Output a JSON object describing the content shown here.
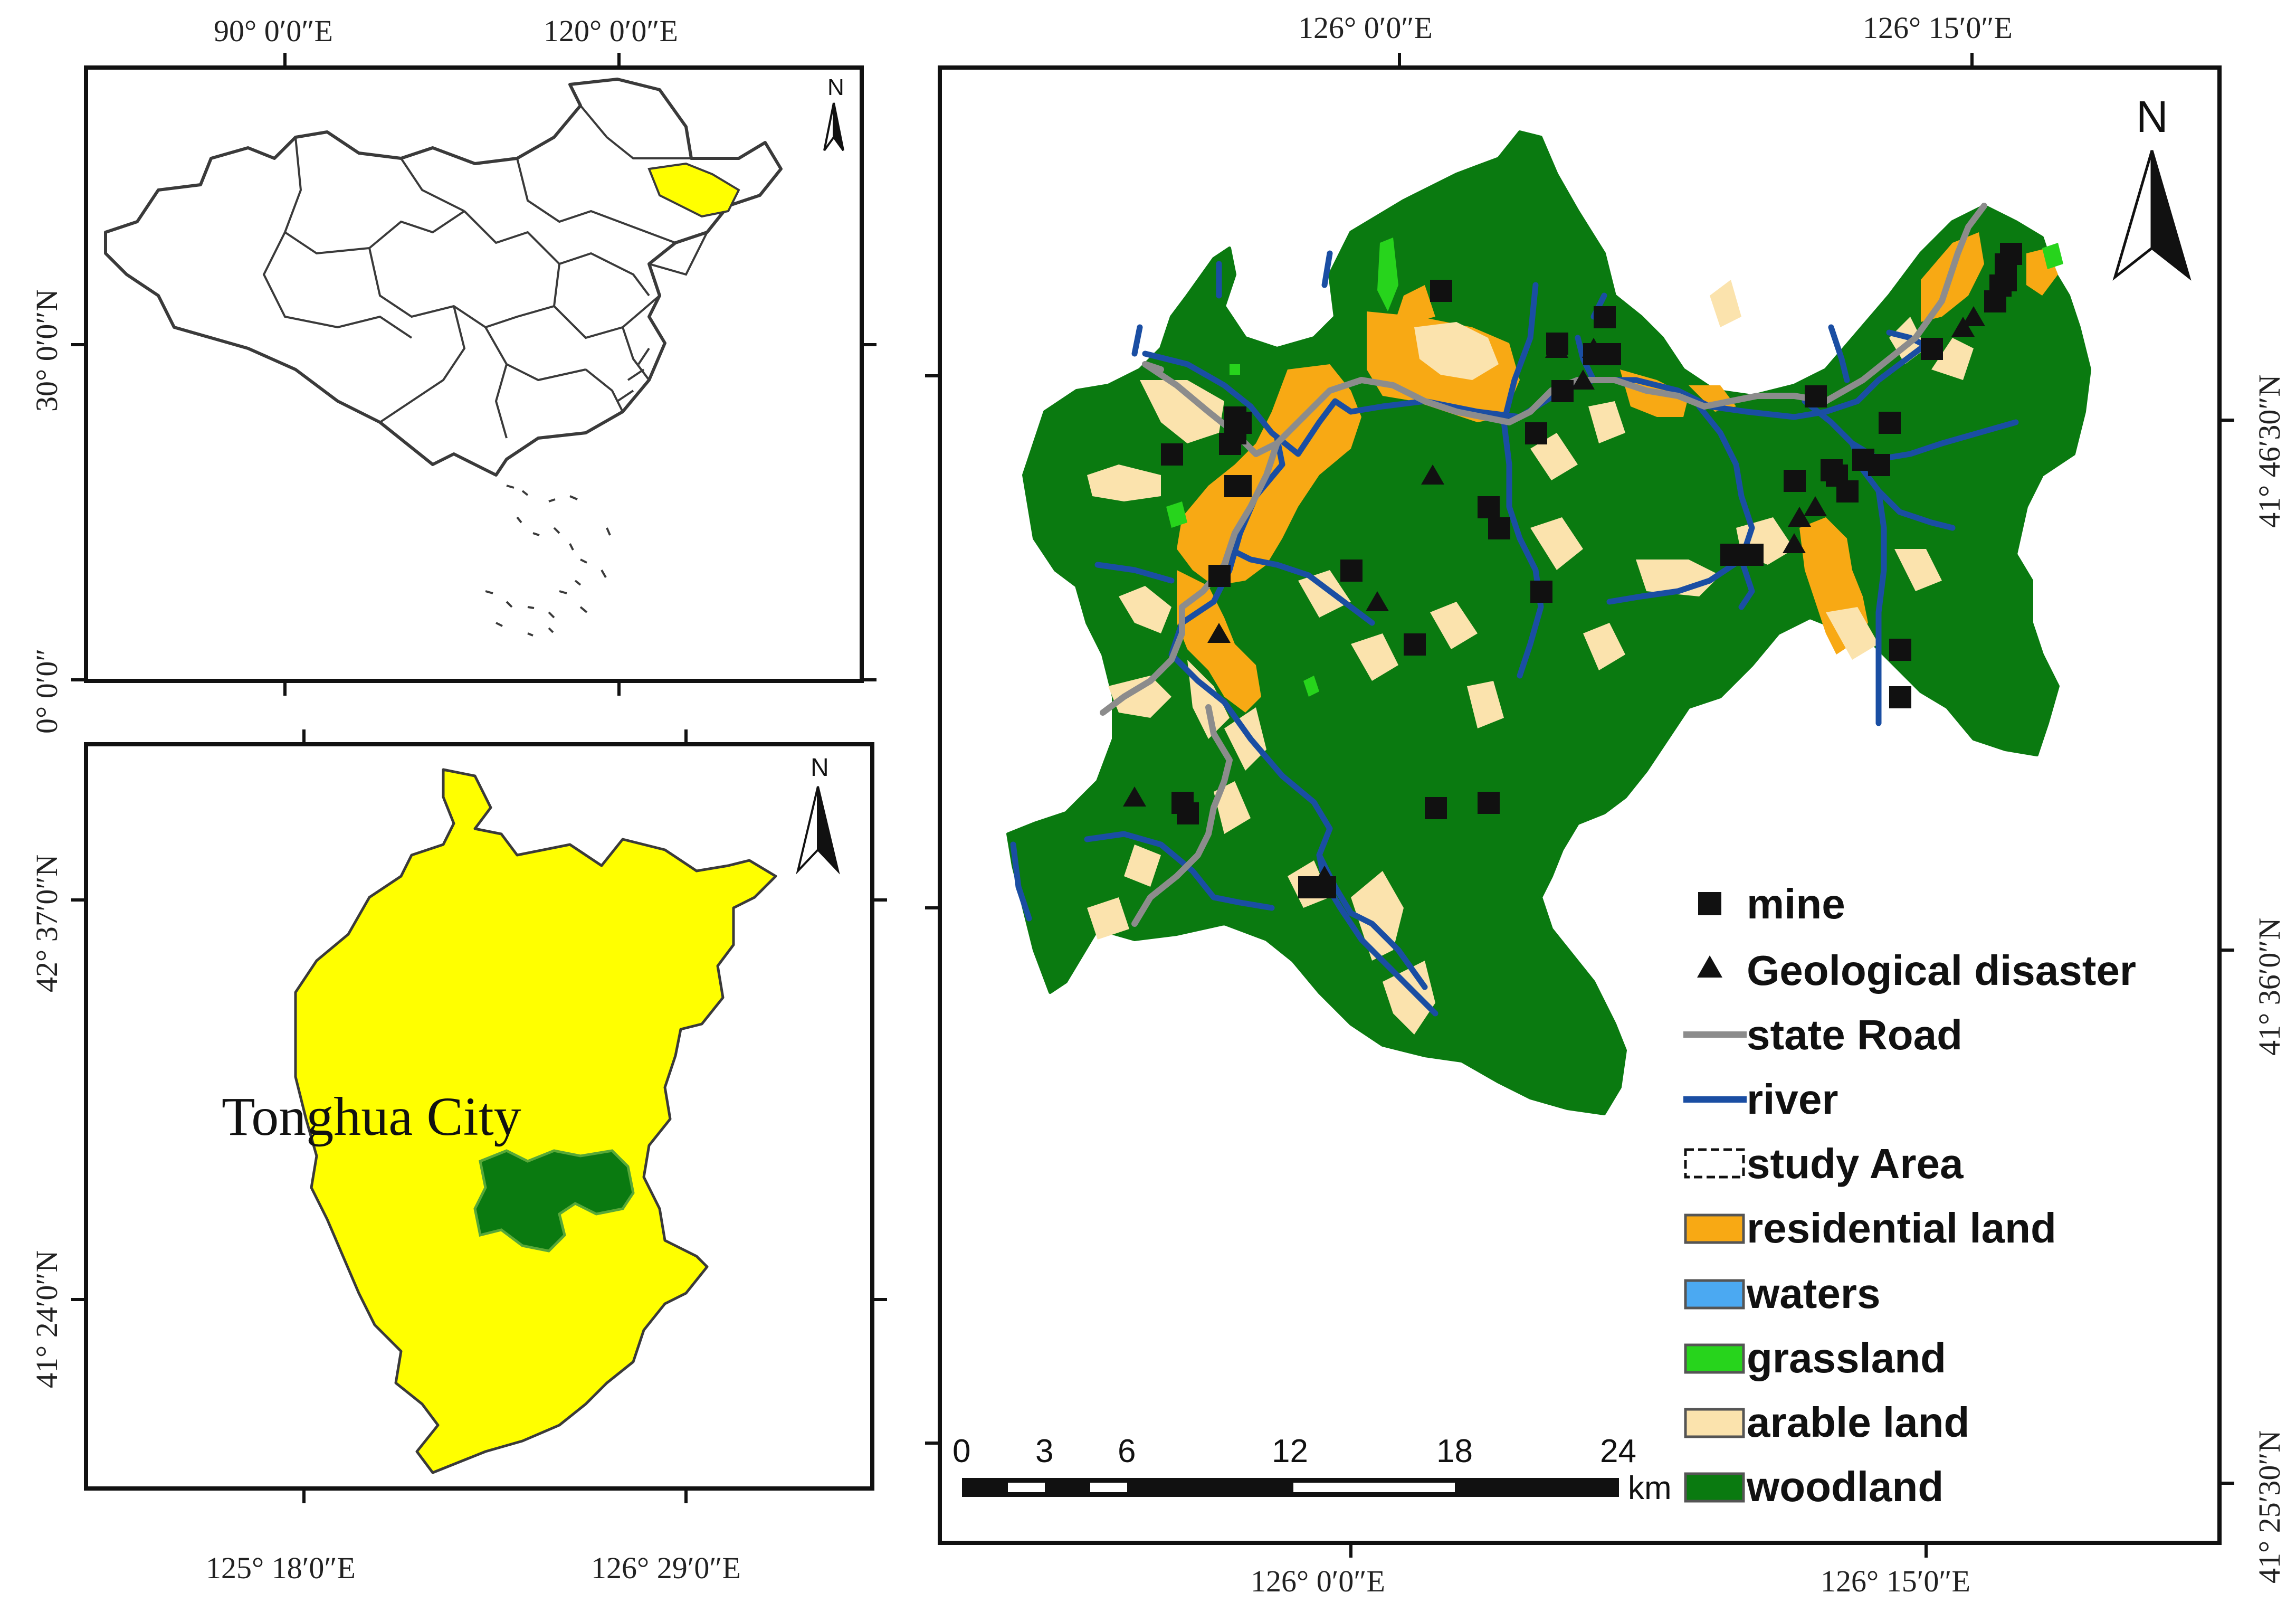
{
  "colors": {
    "woodland": "#0a7a10",
    "arable": "#fbe3ad",
    "residential": "#f8a914",
    "grassland": "#27d41c",
    "waters": "#4ba9f2",
    "river": "#1a4ea3",
    "road": "#8c8c8c",
    "province": "#ffff00",
    "outline": "#3a3a3a",
    "frame": "#111111"
  },
  "china_panel": {
    "top_labels": [
      "90° 0′0″E",
      "120° 0′0″E"
    ],
    "left_labels": [
      "30° 0′0″N",
      "0° 0′0″"
    ],
    "north": "N"
  },
  "tonghua_panel": {
    "city_label": "Tonghua City",
    "left_labels": [
      "42° 37′0″N",
      "41° 24′0″N"
    ],
    "bottom_labels": [
      "125° 18′0″E",
      "126° 29′0″E"
    ],
    "north": "N"
  },
  "study_panel": {
    "top_labels": [
      "126° 0′0″E",
      "126° 15′0″E"
    ],
    "bottom_labels": [
      "126° 0′0″E",
      "126° 15′0″E"
    ],
    "right_labels": [
      "41° 46′30″N",
      "41° 36′0″N",
      "41° 25′30″N"
    ],
    "north": "N"
  },
  "scale_bar": {
    "ticks": [
      "0",
      "3",
      "6",
      "12",
      "18",
      "24"
    ],
    "unit": "km"
  },
  "legend": {
    "items": [
      {
        "key": "mine",
        "label": "mine",
        "symbol": "square"
      },
      {
        "key": "geo",
        "label": "Geological disaster",
        "symbol": "triangle"
      },
      {
        "key": "road",
        "label": "state Road",
        "symbol": "line",
        "color": "#8c8c8c"
      },
      {
        "key": "river",
        "label": "river",
        "symbol": "line",
        "color": "#1a4ea3"
      },
      {
        "key": "study",
        "label": "study Area",
        "symbol": "dashed-box"
      },
      {
        "key": "residential",
        "label": "residential land",
        "symbol": "box",
        "color": "#f8a914"
      },
      {
        "key": "waters",
        "label": "waters",
        "symbol": "box",
        "color": "#4ba9f2"
      },
      {
        "key": "grassland",
        "label": "grassland",
        "symbol": "box",
        "color": "#27d41c"
      },
      {
        "key": "arable",
        "label": "arable land",
        "symbol": "box",
        "color": "#fbe3ad"
      },
      {
        "key": "woodland",
        "label": "woodland",
        "symbol": "box",
        "color": "#0a7a10"
      }
    ]
  },
  "mine_count": 44,
  "geological_disaster_count": 14
}
